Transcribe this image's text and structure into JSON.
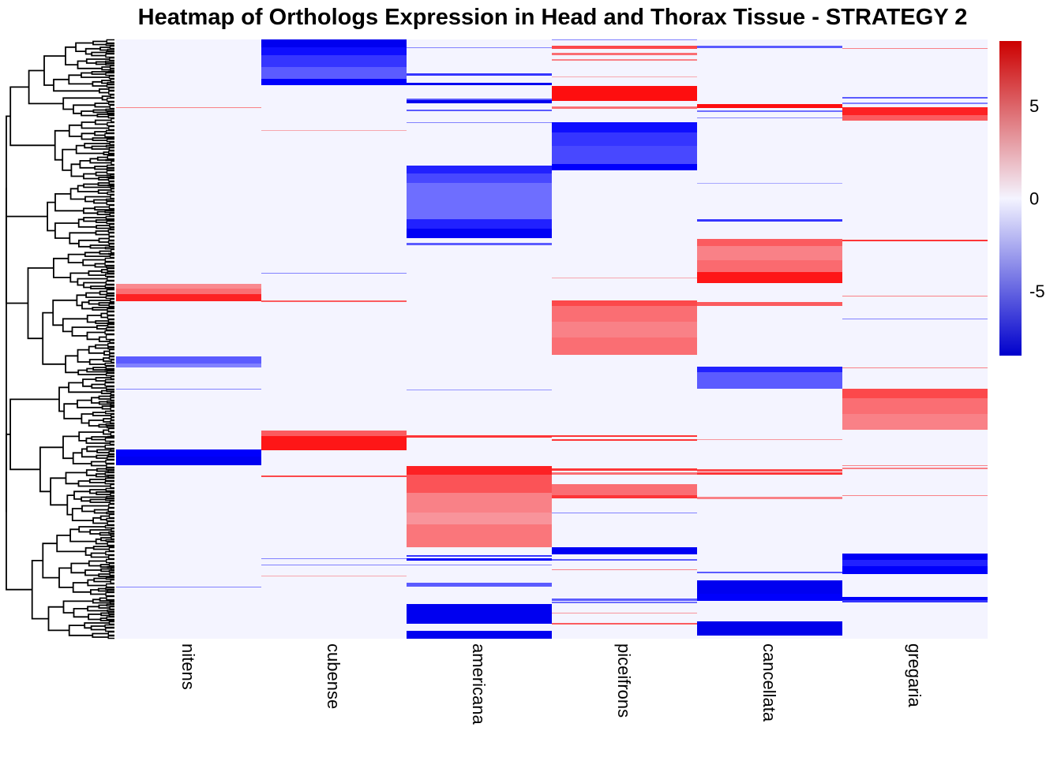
{
  "chart_data": {
    "type": "heatmap",
    "title": "Heatmap of Orthologs Expression in Head and Thorax Tissue - STRATEGY 2",
    "columns": [
      "nitens",
      "cubense",
      "americana",
      "piceifrons",
      "cancellata",
      "gregaria"
    ],
    "row_count": 760,
    "row_dendrogram": true,
    "color_scale": {
      "min": -8.5,
      "max": 8.5,
      "low_color": "#0000cc",
      "mid_color": "#f4f4ff",
      "high_color": "#cc0000",
      "ticks": [
        5,
        0,
        -5
      ],
      "tick_labels": [
        "5",
        "0",
        "-5"
      ]
    },
    "blocks": {
      "nitens": [
        {
          "start": 86,
          "end": 87,
          "value": 3
        },
        {
          "start": 310,
          "end": 316,
          "value": 2.8
        },
        {
          "start": 316,
          "end": 323,
          "value": 3.5
        },
        {
          "start": 323,
          "end": 332,
          "value": 5.5
        },
        {
          "start": 402,
          "end": 411,
          "value": -4
        },
        {
          "start": 411,
          "end": 416,
          "value": -3
        },
        {
          "start": 443,
          "end": 444,
          "value": -3
        },
        {
          "start": 520,
          "end": 529,
          "value": -6.5
        },
        {
          "start": 529,
          "end": 540,
          "value": -7
        },
        {
          "start": 694,
          "end": 695,
          "value": -3
        }
      ],
      "cubense": [
        {
          "start": 0,
          "end": 10,
          "value": -7
        },
        {
          "start": 10,
          "end": 20,
          "value": -6
        },
        {
          "start": 20,
          "end": 35,
          "value": -5
        },
        {
          "start": 35,
          "end": 50,
          "value": -4
        },
        {
          "start": 50,
          "end": 58,
          "value": -6.5
        },
        {
          "start": 115,
          "end": 116,
          "value": 2
        },
        {
          "start": 296,
          "end": 297,
          "value": -3
        },
        {
          "start": 331,
          "end": 333,
          "value": 4
        },
        {
          "start": 496,
          "end": 503,
          "value": 4
        },
        {
          "start": 503,
          "end": 521,
          "value": 5.8
        },
        {
          "start": 553,
          "end": 555,
          "value": 4.5
        },
        {
          "start": 658,
          "end": 659,
          "value": -3
        },
        {
          "start": 666,
          "end": 667,
          "value": -3
        },
        {
          "start": 680,
          "end": 681,
          "value": 2
        }
      ],
      "americana": [
        {
          "start": 10,
          "end": 11,
          "value": -3
        },
        {
          "start": 43,
          "end": 46,
          "value": -5
        },
        {
          "start": 55,
          "end": 58,
          "value": -7
        },
        {
          "start": 75,
          "end": 77,
          "value": -4
        },
        {
          "start": 77,
          "end": 81,
          "value": -7
        },
        {
          "start": 89,
          "end": 91,
          "value": -4
        },
        {
          "start": 105,
          "end": 106,
          "value": -3
        },
        {
          "start": 160,
          "end": 170,
          "value": -5.5
        },
        {
          "start": 170,
          "end": 182,
          "value": -4.5
        },
        {
          "start": 182,
          "end": 228,
          "value": -3.5
        },
        {
          "start": 228,
          "end": 240,
          "value": -5.5
        },
        {
          "start": 240,
          "end": 252,
          "value": -6.8
        },
        {
          "start": 258,
          "end": 261,
          "value": -4
        },
        {
          "start": 444,
          "end": 445,
          "value": -2.5
        },
        {
          "start": 502,
          "end": 505,
          "value": 5
        },
        {
          "start": 541,
          "end": 552,
          "value": 5.5
        },
        {
          "start": 552,
          "end": 575,
          "value": 4.2
        },
        {
          "start": 575,
          "end": 600,
          "value": 3
        },
        {
          "start": 600,
          "end": 615,
          "value": 2.5
        },
        {
          "start": 615,
          "end": 644,
          "value": 3.3
        },
        {
          "start": 654,
          "end": 656,
          "value": -5
        },
        {
          "start": 658,
          "end": 661,
          "value": -6.5
        },
        {
          "start": 666,
          "end": 667,
          "value": -3
        },
        {
          "start": 689,
          "end": 694,
          "value": -4
        },
        {
          "start": 716,
          "end": 741,
          "value": -7
        },
        {
          "start": 750,
          "end": 760,
          "value": -7
        }
      ],
      "piceifrons": [
        {
          "start": 0,
          "end": 1,
          "value": -3
        },
        {
          "start": 8,
          "end": 12,
          "value": 4.5
        },
        {
          "start": 17,
          "end": 20,
          "value": 3.5
        },
        {
          "start": 25,
          "end": 27,
          "value": 3
        },
        {
          "start": 47,
          "end": 48,
          "value": 2
        },
        {
          "start": 59,
          "end": 78,
          "value": 6
        },
        {
          "start": 85,
          "end": 88,
          "value": 3.5
        },
        {
          "start": 105,
          "end": 118,
          "value": -6
        },
        {
          "start": 118,
          "end": 135,
          "value": -5
        },
        {
          "start": 135,
          "end": 158,
          "value": -4.5
        },
        {
          "start": 158,
          "end": 166,
          "value": -6.5
        },
        {
          "start": 302,
          "end": 303,
          "value": 2
        },
        {
          "start": 331,
          "end": 338,
          "value": 4.5
        },
        {
          "start": 338,
          "end": 358,
          "value": 3.5
        },
        {
          "start": 358,
          "end": 378,
          "value": 3
        },
        {
          "start": 378,
          "end": 400,
          "value": 3.5
        },
        {
          "start": 502,
          "end": 504,
          "value": 5
        },
        {
          "start": 507,
          "end": 509,
          "value": 5
        },
        {
          "start": 544,
          "end": 547,
          "value": 5
        },
        {
          "start": 549,
          "end": 552,
          "value": 3.5
        },
        {
          "start": 564,
          "end": 578,
          "value": 3.5
        },
        {
          "start": 578,
          "end": 582,
          "value": 5
        },
        {
          "start": 600,
          "end": 601,
          "value": -3
        },
        {
          "start": 644,
          "end": 653,
          "value": -6.8
        },
        {
          "start": 659,
          "end": 661,
          "value": -4
        },
        {
          "start": 672,
          "end": 673,
          "value": 3
        },
        {
          "start": 709,
          "end": 712,
          "value": -4
        },
        {
          "start": 713,
          "end": 715,
          "value": -3.5
        },
        {
          "start": 727,
          "end": 728,
          "value": 2.5
        },
        {
          "start": 740,
          "end": 742,
          "value": 4
        }
      ],
      "cancellata": [
        {
          "start": 8,
          "end": 11,
          "value": -4
        },
        {
          "start": 82,
          "end": 87,
          "value": 6
        },
        {
          "start": 90,
          "end": 92,
          "value": -3.5
        },
        {
          "start": 99,
          "end": 100,
          "value": -3
        },
        {
          "start": 182,
          "end": 183,
          "value": -2
        },
        {
          "start": 228,
          "end": 231,
          "value": -5
        },
        {
          "start": 253,
          "end": 262,
          "value": 4
        },
        {
          "start": 262,
          "end": 280,
          "value": 3
        },
        {
          "start": 280,
          "end": 295,
          "value": 3.6
        },
        {
          "start": 295,
          "end": 309,
          "value": 5.8
        },
        {
          "start": 333,
          "end": 338,
          "value": 4
        },
        {
          "start": 415,
          "end": 422,
          "value": -5.5
        },
        {
          "start": 422,
          "end": 443,
          "value": -4
        },
        {
          "start": 507,
          "end": 508,
          "value": 2.5
        },
        {
          "start": 545,
          "end": 548,
          "value": 4.5
        },
        {
          "start": 549,
          "end": 552,
          "value": 5
        },
        {
          "start": 580,
          "end": 583,
          "value": 3
        },
        {
          "start": 675,
          "end": 677,
          "value": -4
        },
        {
          "start": 686,
          "end": 703,
          "value": -7
        },
        {
          "start": 703,
          "end": 712,
          "value": -6.5
        },
        {
          "start": 738,
          "end": 756,
          "value": -7.2
        }
      ],
      "gregaria": [
        {
          "start": 11,
          "end": 12,
          "value": 3
        },
        {
          "start": 73,
          "end": 75,
          "value": -4
        },
        {
          "start": 80,
          "end": 82,
          "value": -3
        },
        {
          "start": 86,
          "end": 96,
          "value": 5.5
        },
        {
          "start": 96,
          "end": 103,
          "value": 4
        },
        {
          "start": 254,
          "end": 256,
          "value": 5
        },
        {
          "start": 325,
          "end": 326,
          "value": 3
        },
        {
          "start": 354,
          "end": 355,
          "value": -3
        },
        {
          "start": 416,
          "end": 417,
          "value": 3
        },
        {
          "start": 443,
          "end": 455,
          "value": 4.5
        },
        {
          "start": 455,
          "end": 475,
          "value": 3.5
        },
        {
          "start": 475,
          "end": 495,
          "value": 3
        },
        {
          "start": 540,
          "end": 541,
          "value": 3
        },
        {
          "start": 543,
          "end": 545,
          "value": 3
        },
        {
          "start": 578,
          "end": 579,
          "value": 3
        },
        {
          "start": 652,
          "end": 660,
          "value": -6.8
        },
        {
          "start": 660,
          "end": 668,
          "value": -5.5
        },
        {
          "start": 668,
          "end": 678,
          "value": -6.5
        },
        {
          "start": 707,
          "end": 711,
          "value": -6.5
        },
        {
          "start": 711,
          "end": 714,
          "value": -5
        }
      ]
    }
  }
}
